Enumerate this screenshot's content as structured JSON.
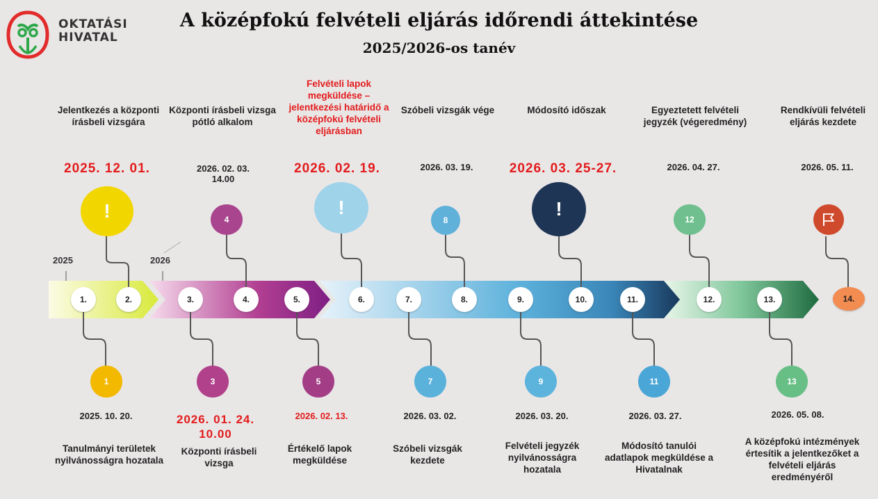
{
  "header": {
    "logo_lines": [
      "OKTATÁSI",
      "HIVATAL"
    ],
    "title": "A középfokú felvételi eljárás időrendi áttekintése",
    "subtitle": "2025/2026-os tanév"
  },
  "years": [
    "2025",
    "2026"
  ],
  "top_events": [
    {
      "label": "Jelentkezés a központi írásbeli vizsgára",
      "date": "2025. 12. 01.",
      "marker": "!",
      "color": "#f2d600"
    },
    {
      "label": "Központi írásbeli vizsga pótló alkalom",
      "date": "2026. 02. 03. 14.00",
      "marker": "4",
      "color": "#a9458e"
    },
    {
      "label": "Felvételi lapok megküldése – jelentkezési határidő a középfokú felvételi eljárásban",
      "date": "2026. 02. 19.",
      "marker": "!",
      "color": "#9fd3ea"
    },
    {
      "label": "Szóbeli vizsgák vége",
      "date": "2026. 03. 19.",
      "marker": "8",
      "color": "#5fb1d9"
    },
    {
      "label": "Módosító időszak",
      "date": "2026. 03. 25-27.",
      "marker": "!",
      "color": "#1e3556"
    },
    {
      "label": "Egyeztetett felvételi jegyzék (végeredmény)",
      "date": "2026. 04. 27.",
      "marker": "12",
      "color": "#6fc08e"
    },
    {
      "label": "Rendkívüli felvételi eljárás kezdete",
      "date": "2026. 05. 11.",
      "marker": "flag",
      "color": "#cf4a2c"
    }
  ],
  "bottom_events": [
    {
      "marker": "1",
      "date": "2025. 10. 20.",
      "label": "Tanulmányi területek nyilvánosságra hozatala",
      "color": "#f3b800"
    },
    {
      "marker": "3",
      "date": "2026. 01. 24. 10.00",
      "label": "Központi írásbeli vizsga",
      "color": "#b0418a"
    },
    {
      "marker": "5",
      "date": "2026. 02. 13.",
      "label": "Értékelő lapok megküldése",
      "color": "#a33d86"
    },
    {
      "marker": "7",
      "date": "2026. 03. 02.",
      "label": "Szóbeli vizsgák kezdete",
      "color": "#5ab2db"
    },
    {
      "marker": "9",
      "date": "2026. 03. 20.",
      "label": "Felvételi jegyzék nyilvánosságra hozatala",
      "color": "#5cb4dd"
    },
    {
      "marker": "11",
      "date": "2026. 03. 27.",
      "label": "Módosító tanulói adatlapok megküldése a Hivatalnak",
      "color": "#4aa6d6"
    },
    {
      "marker": "13",
      "date": "2026. 05. 08.",
      "label": "A középfokú intézmények értesítik a jelentkezőket a felvételi eljárás eredményéről",
      "color": "#67bf86"
    }
  ],
  "steps": [
    "1.",
    "2.",
    "3.",
    "4.",
    "5.",
    "6.",
    "7.",
    "8.",
    "9.",
    "10.",
    "11.",
    "12.",
    "13.",
    "14."
  ],
  "flag_icon": "flag-icon",
  "colors": {
    "bg": "#e9e6e6",
    "red": "#e31b1b",
    "logo_red": "#e22b2b",
    "logo_green": "#2ea84a",
    "step14": "#f28c50"
  }
}
